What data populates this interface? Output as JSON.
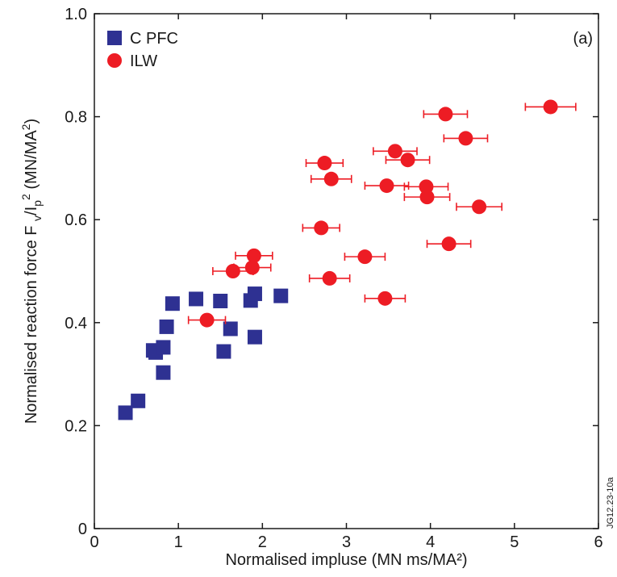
{
  "chart_data": {
    "type": "scatter",
    "xlabel": "Normalised impluse (MN ms/MA²)",
    "ylabel_parts": {
      "main": "Normalised reaction force F ",
      "sub_v": "v",
      "mid": "/I",
      "sub_p": "p",
      "sup_2": "2",
      "tail": " (MN/MA",
      "sup_2b": "2",
      "close": ")"
    },
    "xlim": [
      0,
      6
    ],
    "ylim": [
      0,
      1.0
    ],
    "x_ticks": [
      0,
      1,
      2,
      3,
      4,
      5,
      6
    ],
    "x_tick_labels": [
      "0",
      "1",
      "2",
      "3",
      "4",
      "5",
      "6"
    ],
    "y_ticks": [
      0,
      0.2,
      0.4,
      0.6,
      0.8,
      1.0
    ],
    "y_tick_labels": [
      "0",
      "0.2",
      "0.4",
      "0.6",
      "0.8",
      "1.0"
    ],
    "panel_label": "(a)",
    "side_code": "JG12.23-10a",
    "legend_position": "top-left",
    "series": [
      {
        "name": "C PFC",
        "marker": "square",
        "color": "#2e3192",
        "points": [
          [
            0.37,
            0.225
          ],
          [
            0.52,
            0.248
          ],
          [
            0.7,
            0.346
          ],
          [
            0.73,
            0.342
          ],
          [
            0.82,
            0.352
          ],
          [
            0.82,
            0.303
          ],
          [
            0.86,
            0.392
          ],
          [
            0.93,
            0.437
          ],
          [
            1.21,
            0.446
          ],
          [
            1.5,
            0.442
          ],
          [
            1.54,
            0.344
          ],
          [
            1.62,
            0.388
          ],
          [
            1.86,
            0.443
          ],
          [
            1.91,
            0.456
          ],
          [
            1.91,
            0.372
          ],
          [
            2.22,
            0.452
          ]
        ]
      },
      {
        "name": "ILW",
        "marker": "circle",
        "color": "#ed1c24",
        "points": [
          [
            1.34,
            0.405,
            0.22
          ],
          [
            1.65,
            0.5,
            0.24
          ],
          [
            1.88,
            0.507,
            0.22
          ],
          [
            1.9,
            0.53,
            0.22
          ],
          [
            2.7,
            0.584,
            0.22
          ],
          [
            2.74,
            0.71,
            0.22
          ],
          [
            2.8,
            0.486,
            0.24
          ],
          [
            2.82,
            0.679,
            0.24
          ],
          [
            3.22,
            0.528,
            0.24
          ],
          [
            3.46,
            0.447,
            0.24
          ],
          [
            3.48,
            0.666,
            0.26
          ],
          [
            3.58,
            0.733,
            0.26
          ],
          [
            3.73,
            0.716,
            0.26
          ],
          [
            3.95,
            0.664,
            0.26
          ],
          [
            3.96,
            0.644,
            0.27
          ],
          [
            4.18,
            0.805,
            0.26
          ],
          [
            4.22,
            0.553,
            0.26
          ],
          [
            4.42,
            0.758,
            0.26
          ],
          [
            4.58,
            0.625,
            0.27
          ],
          [
            5.43,
            0.819,
            0.3
          ]
        ]
      }
    ]
  }
}
